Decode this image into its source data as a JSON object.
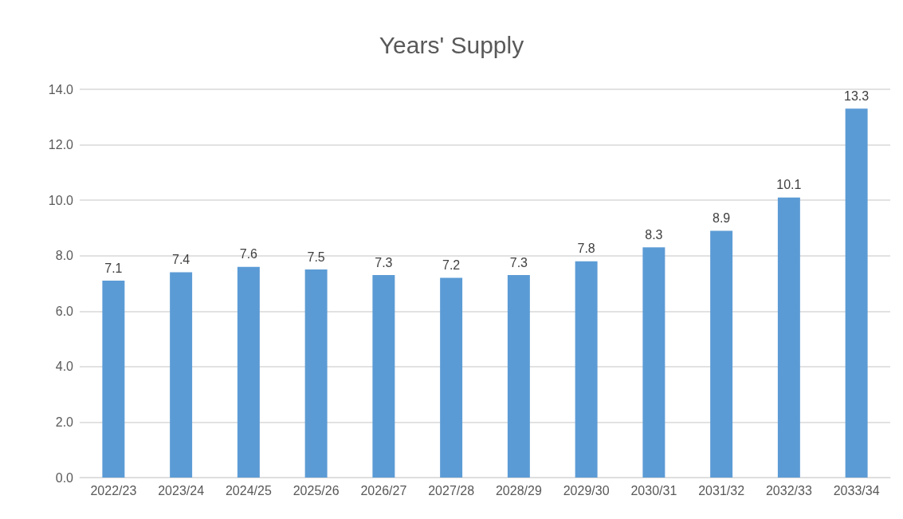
{
  "chart_data": {
    "type": "bar",
    "title": "Years' Supply",
    "categories": [
      "2022/23",
      "2023/24",
      "2024/25",
      "2025/26",
      "2026/27",
      "2027/28",
      "2028/29",
      "2029/30",
      "2030/31",
      "2031/32",
      "2032/33",
      "2033/34"
    ],
    "values": [
      7.1,
      7.4,
      7.6,
      7.5,
      7.3,
      7.2,
      7.3,
      7.8,
      8.3,
      8.9,
      10.1,
      13.3
    ],
    "color": "#5b9bd5",
    "ylim": [
      0,
      14
    ],
    "yticks": [
      {
        "value": 0,
        "label": "0.0"
      },
      {
        "value": 2,
        "label": "2.0"
      },
      {
        "value": 4,
        "label": "4.0"
      },
      {
        "value": 6,
        "label": "6.0"
      },
      {
        "value": 8,
        "label": "8.0"
      },
      {
        "value": 10,
        "label": "10.0"
      },
      {
        "value": 12,
        "label": "12.0"
      },
      {
        "value": 14,
        "label": "14.0"
      }
    ],
    "grid": "y",
    "data_labels": true
  }
}
